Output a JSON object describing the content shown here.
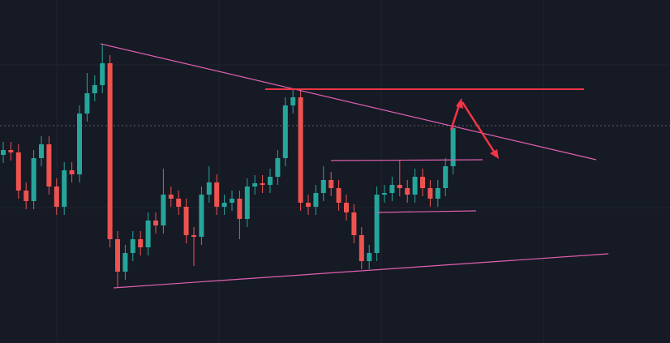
{
  "chart_data": {
    "type": "candlestick",
    "open": [
      232,
      238,
      235,
      188,
      175,
      228,
      245,
      193,
      168,
      213,
      208,
      283,
      308,
      318,
      345,
      128,
      88,
      111,
      128,
      118,
      151,
      145,
      183,
      178,
      168,
      133,
      131,
      183,
      198,
      168,
      173,
      178,
      153,
      193,
      197,
      195,
      205,
      228,
      293,
      303,
      173,
      168,
      185,
      201,
      191,
      173,
      161,
      133,
      101,
      111,
      183,
      185,
      195,
      191,
      183,
      205,
      191,
      178,
      191,
      218
    ],
    "high": [
      248,
      248,
      245,
      198,
      238,
      255,
      255,
      203,
      223,
      223,
      293,
      333,
      330,
      368,
      355,
      138,
      121,
      138,
      138,
      161,
      161,
      215,
      193,
      188,
      178,
      143,
      193,
      218,
      208,
      183,
      188,
      188,
      203,
      207,
      207,
      215,
      238,
      303,
      313,
      313,
      183,
      195,
      218,
      211,
      201,
      183,
      171,
      143,
      121,
      193,
      195,
      205,
      225,
      201,
      215,
      215,
      201,
      201,
      228,
      273
    ],
    "low": [
      222,
      225,
      178,
      165,
      165,
      218,
      183,
      158,
      158,
      198,
      198,
      273,
      298,
      308,
      118,
      68,
      78,
      101,
      108,
      108,
      135,
      135,
      168,
      158,
      123,
      95,
      121,
      173,
      158,
      158,
      163,
      128,
      143,
      183,
      185,
      185,
      195,
      218,
      283,
      163,
      158,
      158,
      175,
      181,
      163,
      151,
      123,
      91,
      91,
      101,
      173,
      175,
      181,
      173,
      173,
      181,
      168,
      168,
      181,
      208
    ],
    "close": [
      238,
      235,
      188,
      175,
      228,
      245,
      193,
      168,
      213,
      208,
      283,
      308,
      318,
      345,
      128,
      88,
      111,
      128,
      118,
      151,
      145,
      183,
      178,
      168,
      133,
      131,
      183,
      198,
      168,
      173,
      178,
      153,
      193,
      197,
      195,
      205,
      228,
      293,
      303,
      173,
      168,
      185,
      201,
      191,
      173,
      161,
      133,
      101,
      111,
      183,
      185,
      195,
      191,
      183,
      205,
      191,
      178,
      191,
      218,
      265
    ],
    "up_color": "#26a69a",
    "down_color": "#ef5350",
    "ylim": [
      0,
      423
    ],
    "yticks": [
      167,
      343
    ],
    "grid": true
  }
}
